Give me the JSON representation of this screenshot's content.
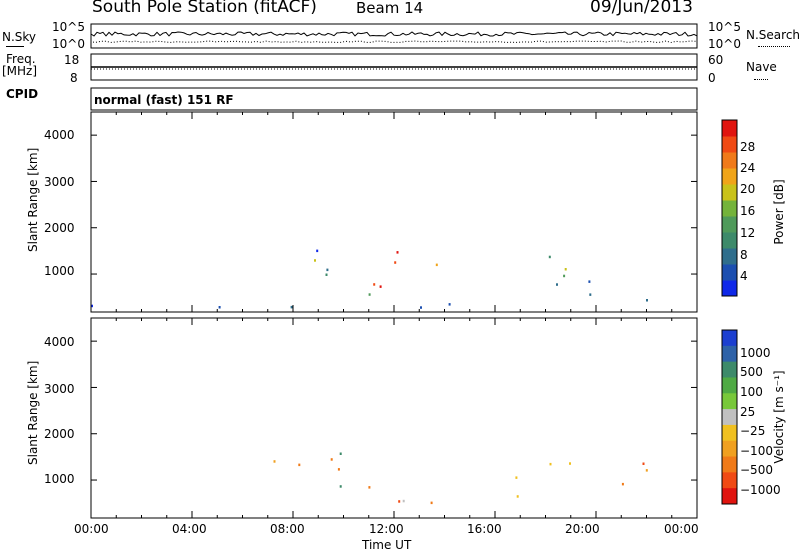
{
  "header": {
    "title": "South Pole Station (fitACF)",
    "beam": "Beam 14",
    "date": "09/Jun/2013"
  },
  "top_panels": {
    "nsky_label": "N.Sky",
    "nsearch_label": "N.Search",
    "nsky_ticks": [
      "10^5",
      "10^0"
    ],
    "nsearch_ticks": [
      "10^5",
      "10^0"
    ],
    "freq_label": "Freq.",
    "freq_unit": "[MHz]",
    "freq_ticks": [
      "18",
      "8"
    ],
    "nave_label": "Nave",
    "nave_ticks": [
      "60",
      "0"
    ],
    "cpid_label": "CPID",
    "cpid_value": "normal (fast) 151 RF"
  },
  "chart_data": [
    {
      "type": "heatmap",
      "name": "power",
      "ylabel": "Slant Range [km]",
      "xlabel": "",
      "xlim": [
        0,
        24
      ],
      "ylim": [
        180,
        4500
      ],
      "y_ticks": [
        "1000",
        "2000",
        "3000",
        "4000"
      ],
      "colorbar": {
        "label": "Power [dB]",
        "ticks": [
          "4",
          "8",
          "12",
          "16",
          "20",
          "24",
          "28"
        ],
        "colors": [
          "#0f28e8",
          "#1c4fb0",
          "#2f6e8c",
          "#3d8a6a",
          "#4f9a5a",
          "#74b33b",
          "#c9c21a",
          "#f0a419",
          "#f07a1a",
          "#f04a14",
          "#e0140f"
        ]
      },
      "echo_regions": [
        {
          "t_start": 0.0,
          "t_end": 24.0,
          "r_start": 200,
          "r_end": 350,
          "level": "low"
        },
        {
          "t_start": 6.3,
          "t_end": 10.0,
          "r_start": 900,
          "r_end": 1800,
          "level": "medium"
        },
        {
          "t_start": 9.5,
          "t_end": 14.0,
          "r_start": 400,
          "r_end": 1600,
          "level": "high"
        },
        {
          "t_start": 14.0,
          "t_end": 16.8,
          "r_start": 250,
          "r_end": 700,
          "level": "low"
        },
        {
          "t_start": 16.8,
          "t_end": 22.5,
          "r_start": 400,
          "r_end": 1500,
          "level": "medium"
        }
      ]
    },
    {
      "type": "heatmap",
      "name": "velocity",
      "ylabel": "Slant Range [km]",
      "xlabel": "Time UT",
      "xlim": [
        0,
        24
      ],
      "ylim": [
        180,
        4500
      ],
      "x_ticks": [
        "00:00",
        "04:00",
        "08:00",
        "12:00",
        "16:00",
        "20:00",
        "00:00"
      ],
      "y_ticks": [
        "1000",
        "2000",
        "3000",
        "4000"
      ],
      "colorbar": {
        "label": "Velocity [m s⁻¹]",
        "ticks": [
          "1000",
          "500",
          "100",
          "25",
          "−25",
          "−100",
          "−500",
          "−1000"
        ],
        "colors": [
          "#1c3fd0",
          "#2e62a8",
          "#3d8a6a",
          "#4faa44",
          "#78c83a",
          "#c0c0c0",
          "#f0c020",
          "#f0a020",
          "#f07a18",
          "#f04a14",
          "#e0140f"
        ]
      },
      "echo_regions": [
        {
          "t_start": 6.3,
          "t_end": 10.0,
          "r_start": 900,
          "r_end": 1800,
          "level": "negative"
        },
        {
          "t_start": 9.5,
          "t_end": 14.0,
          "r_start": 400,
          "r_end": 1600,
          "level": "mixed"
        },
        {
          "t_start": 16.8,
          "t_end": 22.5,
          "r_start": 400,
          "r_end": 1500,
          "level": "negative"
        }
      ]
    }
  ]
}
